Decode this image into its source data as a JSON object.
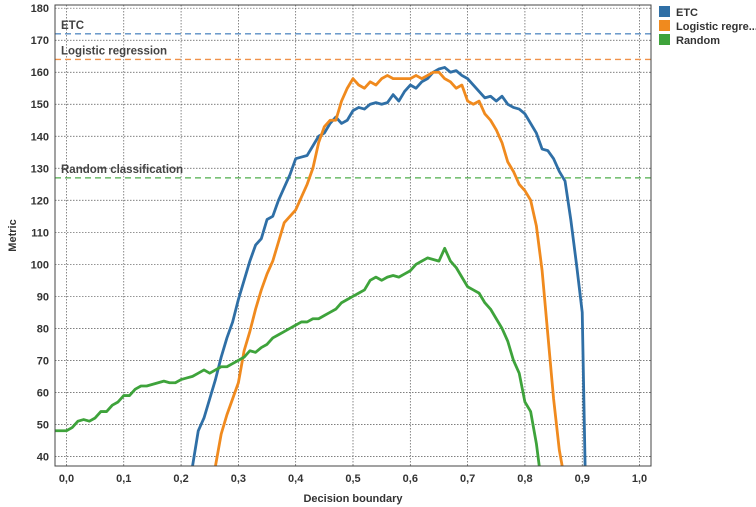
{
  "chart_data": {
    "type": "line",
    "title": "",
    "xlabel": "Decision boundary",
    "ylabel": "Metric",
    "xlim": [
      -0.02,
      1.02
    ],
    "ylim": [
      37,
      181
    ],
    "xticks": [
      0,
      0.1,
      0.2,
      0.3,
      0.4,
      0.5,
      0.6,
      0.7,
      0.8,
      0.9,
      1.0
    ],
    "xtick_labels": [
      "0,0",
      "0,1",
      "0,2",
      "0,3",
      "0,4",
      "0,5",
      "0,6",
      "0,7",
      "0,8",
      "0,9",
      "1,0"
    ],
    "yticks": [
      40,
      50,
      60,
      70,
      80,
      90,
      100,
      110,
      120,
      130,
      140,
      150,
      160,
      170,
      180
    ],
    "ytick_labels": [
      "40",
      "50",
      "60",
      "70",
      "80",
      "90",
      "100",
      "110",
      "120",
      "130",
      "140",
      "150",
      "160",
      "170",
      "180"
    ],
    "grid": true,
    "legend_position": "right-top",
    "series": [
      {
        "name": "ETC",
        "color": "#2f6fa6",
        "points": [
          [
            0.22,
            37
          ],
          [
            0.23,
            48
          ],
          [
            0.24,
            52
          ],
          [
            0.25,
            58
          ],
          [
            0.26,
            64
          ],
          [
            0.27,
            71
          ],
          [
            0.28,
            77
          ],
          [
            0.29,
            82
          ],
          [
            0.3,
            89
          ],
          [
            0.31,
            95
          ],
          [
            0.32,
            101
          ],
          [
            0.33,
            106
          ],
          [
            0.34,
            108
          ],
          [
            0.35,
            114
          ],
          [
            0.36,
            115
          ],
          [
            0.37,
            120
          ],
          [
            0.38,
            124
          ],
          [
            0.39,
            128
          ],
          [
            0.4,
            133
          ],
          [
            0.41,
            133.5
          ],
          [
            0.42,
            134
          ],
          [
            0.43,
            137
          ],
          [
            0.44,
            140
          ],
          [
            0.45,
            141
          ],
          [
            0.46,
            144
          ],
          [
            0.47,
            146
          ],
          [
            0.48,
            144
          ],
          [
            0.49,
            145
          ],
          [
            0.5,
            148
          ],
          [
            0.51,
            149
          ],
          [
            0.52,
            148.5
          ],
          [
            0.53,
            150
          ],
          [
            0.54,
            150.5
          ],
          [
            0.55,
            150
          ],
          [
            0.56,
            150.5
          ],
          [
            0.57,
            153
          ],
          [
            0.58,
            151
          ],
          [
            0.59,
            154
          ],
          [
            0.6,
            156
          ],
          [
            0.61,
            155
          ],
          [
            0.62,
            157
          ],
          [
            0.63,
            158
          ],
          [
            0.64,
            160
          ],
          [
            0.65,
            161
          ],
          [
            0.66,
            161.5
          ],
          [
            0.67,
            160
          ],
          [
            0.68,
            160.5
          ],
          [
            0.69,
            159
          ],
          [
            0.7,
            158
          ],
          [
            0.71,
            156
          ],
          [
            0.72,
            154
          ],
          [
            0.73,
            152
          ],
          [
            0.74,
            152.5
          ],
          [
            0.75,
            151
          ],
          [
            0.76,
            152.5
          ],
          [
            0.77,
            150
          ],
          [
            0.78,
            149
          ],
          [
            0.79,
            148.5
          ],
          [
            0.8,
            147
          ],
          [
            0.81,
            144
          ],
          [
            0.82,
            141
          ],
          [
            0.83,
            136
          ],
          [
            0.84,
            135.5
          ],
          [
            0.85,
            133
          ],
          [
            0.86,
            129
          ],
          [
            0.87,
            126
          ],
          [
            0.88,
            114
          ],
          [
            0.89,
            100
          ],
          [
            0.9,
            85
          ],
          [
            0.905,
            37
          ]
        ]
      },
      {
        "name": "Logistic regression",
        "color": "#f08a1e",
        "points": [
          [
            0.26,
            37
          ],
          [
            0.27,
            47
          ],
          [
            0.28,
            53
          ],
          [
            0.29,
            58
          ],
          [
            0.3,
            63
          ],
          [
            0.31,
            73
          ],
          [
            0.32,
            79
          ],
          [
            0.33,
            86
          ],
          [
            0.34,
            92
          ],
          [
            0.35,
            97
          ],
          [
            0.36,
            101
          ],
          [
            0.37,
            107
          ],
          [
            0.38,
            113
          ],
          [
            0.39,
            115
          ],
          [
            0.4,
            117
          ],
          [
            0.41,
            121
          ],
          [
            0.42,
            125
          ],
          [
            0.43,
            130
          ],
          [
            0.44,
            138
          ],
          [
            0.45,
            143
          ],
          [
            0.46,
            145
          ],
          [
            0.47,
            145
          ],
          [
            0.48,
            151
          ],
          [
            0.49,
            155
          ],
          [
            0.5,
            158
          ],
          [
            0.51,
            156
          ],
          [
            0.52,
            155
          ],
          [
            0.53,
            157
          ],
          [
            0.54,
            156
          ],
          [
            0.55,
            158
          ],
          [
            0.56,
            159
          ],
          [
            0.57,
            158
          ],
          [
            0.58,
            158
          ],
          [
            0.59,
            158
          ],
          [
            0.6,
            158
          ],
          [
            0.61,
            159
          ],
          [
            0.62,
            158
          ],
          [
            0.63,
            159
          ],
          [
            0.64,
            160
          ],
          [
            0.65,
            160
          ],
          [
            0.66,
            158
          ],
          [
            0.67,
            157
          ],
          [
            0.68,
            155
          ],
          [
            0.69,
            156
          ],
          [
            0.7,
            151
          ],
          [
            0.71,
            150
          ],
          [
            0.72,
            151
          ],
          [
            0.73,
            147
          ],
          [
            0.74,
            145
          ],
          [
            0.75,
            142
          ],
          [
            0.76,
            138
          ],
          [
            0.77,
            132
          ],
          [
            0.78,
            129
          ],
          [
            0.79,
            125
          ],
          [
            0.8,
            123
          ],
          [
            0.81,
            120
          ],
          [
            0.82,
            112
          ],
          [
            0.83,
            98
          ],
          [
            0.84,
            78
          ],
          [
            0.85,
            58
          ],
          [
            0.86,
            42
          ],
          [
            0.865,
            37
          ]
        ]
      },
      {
        "name": "Random",
        "color": "#3ea33b",
        "points": [
          [
            -0.02,
            48
          ],
          [
            0.0,
            48
          ],
          [
            0.01,
            49
          ],
          [
            0.02,
            51
          ],
          [
            0.03,
            51.5
          ],
          [
            0.04,
            51
          ],
          [
            0.05,
            52
          ],
          [
            0.06,
            54
          ],
          [
            0.07,
            54
          ],
          [
            0.08,
            56
          ],
          [
            0.09,
            57
          ],
          [
            0.1,
            59
          ],
          [
            0.11,
            59
          ],
          [
            0.12,
            61
          ],
          [
            0.13,
            62
          ],
          [
            0.14,
            62
          ],
          [
            0.15,
            62.5
          ],
          [
            0.16,
            63
          ],
          [
            0.17,
            63.5
          ],
          [
            0.18,
            63
          ],
          [
            0.19,
            63
          ],
          [
            0.2,
            64
          ],
          [
            0.21,
            64.5
          ],
          [
            0.22,
            65
          ],
          [
            0.23,
            66
          ],
          [
            0.24,
            67
          ],
          [
            0.25,
            66
          ],
          [
            0.26,
            67
          ],
          [
            0.27,
            68
          ],
          [
            0.28,
            68
          ],
          [
            0.29,
            69
          ],
          [
            0.3,
            70
          ],
          [
            0.31,
            71
          ],
          [
            0.32,
            73
          ],
          [
            0.33,
            72.5
          ],
          [
            0.34,
            74
          ],
          [
            0.35,
            75
          ],
          [
            0.36,
            77
          ],
          [
            0.37,
            78
          ],
          [
            0.38,
            79
          ],
          [
            0.39,
            80
          ],
          [
            0.4,
            81
          ],
          [
            0.41,
            82
          ],
          [
            0.42,
            82
          ],
          [
            0.43,
            83
          ],
          [
            0.44,
            83
          ],
          [
            0.45,
            84
          ],
          [
            0.46,
            85
          ],
          [
            0.47,
            86
          ],
          [
            0.48,
            88
          ],
          [
            0.49,
            89
          ],
          [
            0.5,
            90
          ],
          [
            0.51,
            91
          ],
          [
            0.52,
            92
          ],
          [
            0.53,
            95
          ],
          [
            0.54,
            96
          ],
          [
            0.55,
            95
          ],
          [
            0.56,
            96
          ],
          [
            0.57,
            96.5
          ],
          [
            0.58,
            96
          ],
          [
            0.59,
            97
          ],
          [
            0.6,
            98
          ],
          [
            0.61,
            100
          ],
          [
            0.62,
            101
          ],
          [
            0.63,
            102
          ],
          [
            0.64,
            101.5
          ],
          [
            0.65,
            101
          ],
          [
            0.66,
            105
          ],
          [
            0.67,
            101
          ],
          [
            0.68,
            99
          ],
          [
            0.69,
            96
          ],
          [
            0.7,
            93
          ],
          [
            0.71,
            92
          ],
          [
            0.72,
            91
          ],
          [
            0.73,
            88
          ],
          [
            0.74,
            86
          ],
          [
            0.75,
            83
          ],
          [
            0.76,
            80
          ],
          [
            0.77,
            76
          ],
          [
            0.78,
            70
          ],
          [
            0.79,
            66
          ],
          [
            0.8,
            57
          ],
          [
            0.81,
            54
          ],
          [
            0.82,
            44
          ],
          [
            0.825,
            37
          ]
        ]
      }
    ],
    "reference_lines": [
      {
        "label": "ETC",
        "y": 172,
        "color": "#5b8fc4"
      },
      {
        "label": "Logistic regression",
        "y": 164,
        "color": "#f0924a"
      },
      {
        "label": "Random classification",
        "y": 127,
        "color": "#4fae4b"
      }
    ],
    "legend": [
      {
        "label": "ETC",
        "color": "#2f6fa6"
      },
      {
        "label": "Logistic regre...",
        "color": "#f08a1e"
      },
      {
        "label": "Random",
        "color": "#3ea33b"
      }
    ]
  }
}
